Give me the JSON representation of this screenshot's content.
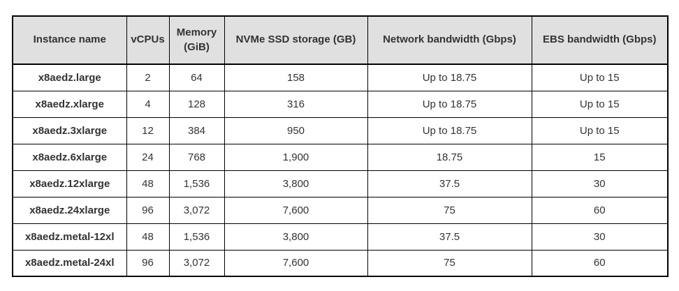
{
  "table": {
    "name": "instance-specifications-table",
    "header_bg": "#e0e0e0",
    "border_color": "#000000",
    "text_color": "#333333",
    "columns": [
      "Instance name",
      "vCPUs",
      "Memory (GiB)",
      "NVMe SSD storage (GB)",
      "Network bandwidth (Gbps)",
      "EBS bandwidth (Gbps)"
    ],
    "rows": [
      [
        "x8aedz.large",
        "2",
        "64",
        "158",
        "Up to 18.75",
        "Up to 15"
      ],
      [
        "x8aedz.xlarge",
        "4",
        "128",
        "316",
        "Up to 18.75",
        "Up to 15"
      ],
      [
        "x8aedz.3xlarge",
        "12",
        "384",
        "950",
        "Up to 18.75",
        "Up to 15"
      ],
      [
        "x8aedz.6xlarge",
        "24",
        "768",
        "1,900",
        "18.75",
        "15"
      ],
      [
        "x8aedz.12xlarge",
        "48",
        "1,536",
        "3,800",
        "37.5",
        "30"
      ],
      [
        "x8aedz.24xlarge",
        "96",
        "3,072",
        "7,600",
        "75",
        "60"
      ],
      [
        "x8aedz.metal-12xl",
        "48",
        "1,536",
        "3,800",
        "37.5",
        "30"
      ],
      [
        "x8aedz.metal-24xl",
        "96",
        "3,072",
        "7,600",
        "75",
        "60"
      ]
    ]
  }
}
